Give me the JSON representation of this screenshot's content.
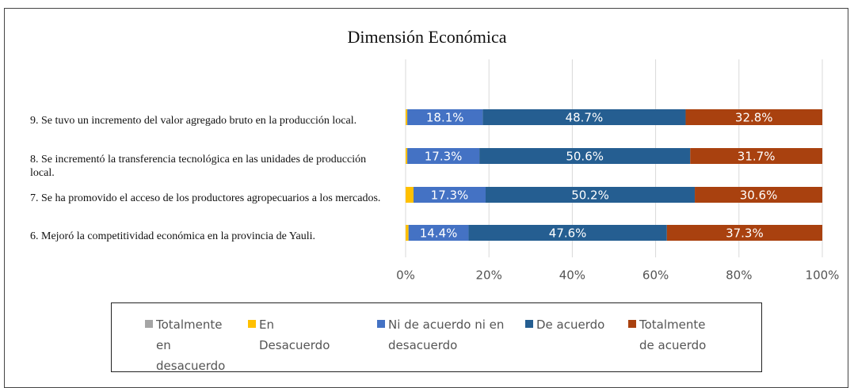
{
  "chart_data": {
    "type": "stacked-bar-horizontal",
    "title": "Dimensión Económica",
    "categories": [
      "9. Se tuvo un incremento del valor agregado bruto en la producción local.",
      "8. Se incrementó la transferencia tecnológica en las unidades de producción local.",
      "7. Se ha promovido el acceso de los productores agropecuarios a los mercados.",
      "6. Mejoró la competitividad económica en la provincia de Yauli."
    ],
    "series": [
      {
        "name": "Totalmente en desacuerdo",
        "color": "#a5a5a5",
        "values": [
          0,
          0,
          0,
          0
        ]
      },
      {
        "name": "En Desacuerdo",
        "color": "#ffc000",
        "values": [
          0.4,
          0.4,
          1.9,
          0.7
        ]
      },
      {
        "name": "Ni de acuerdo ni en desacuerdo",
        "color": "#4472c4",
        "values": [
          18.1,
          17.3,
          17.3,
          14.4
        ],
        "value_labels": [
          "18.1%",
          "17.3%",
          "17.3%",
          "14.4%"
        ]
      },
      {
        "name": "De acuerdo",
        "color": "#255e91",
        "values": [
          48.7,
          50.6,
          50.2,
          47.6
        ],
        "value_labels": [
          "48.7%",
          "50.6%",
          "50.2%",
          "47.6%"
        ]
      },
      {
        "name": "Totalmente de acuerdo",
        "color": "#a9410f",
        "values": [
          32.8,
          31.7,
          30.6,
          37.3
        ],
        "value_labels": [
          "32.8%",
          "31.7%",
          "30.6%",
          "37.3%"
        ]
      }
    ],
    "xlim": [
      0,
      100
    ],
    "xticks": [
      {
        "value": 0,
        "label": "0%"
      },
      {
        "value": 20,
        "label": "20%"
      },
      {
        "value": 40,
        "label": "40%"
      },
      {
        "value": 60,
        "label": "60%"
      },
      {
        "value": 80,
        "label": "80%"
      },
      {
        "value": 100,
        "label": "100%"
      }
    ],
    "grid": true,
    "legend": "bottom"
  }
}
